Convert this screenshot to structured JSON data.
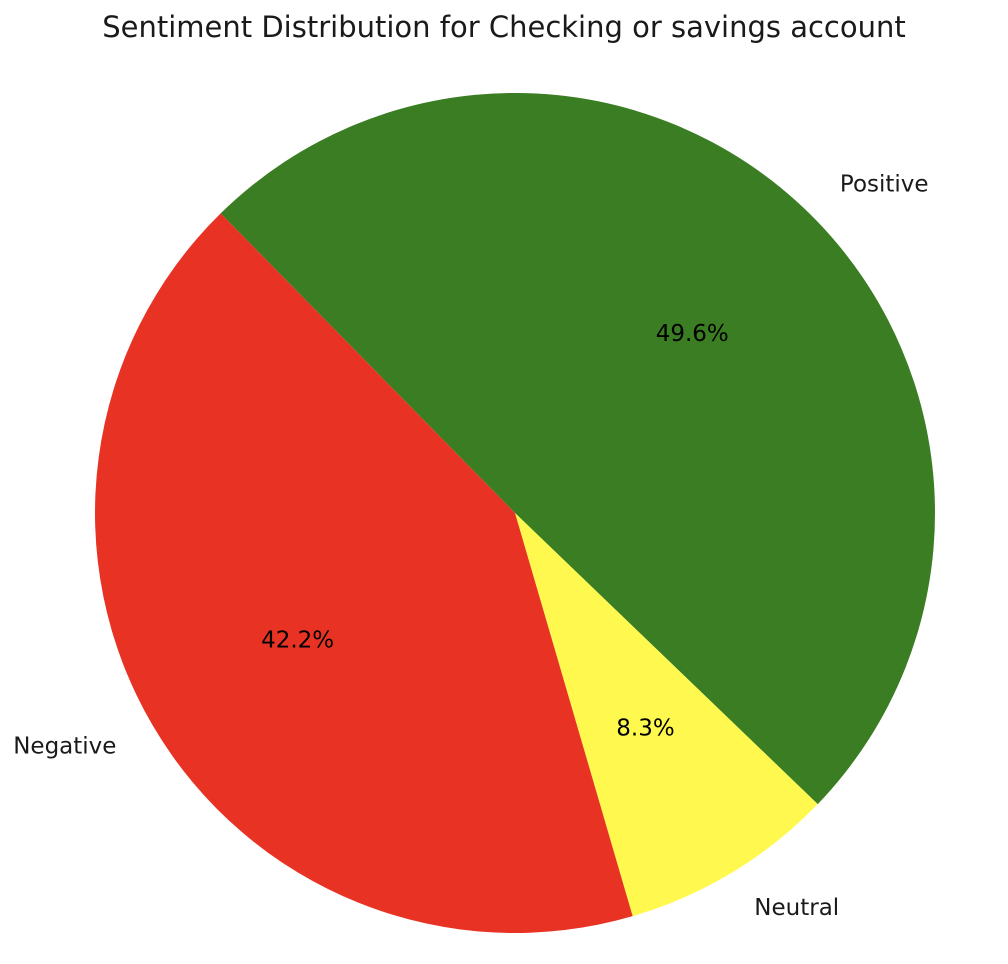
{
  "chart_data": {
    "type": "pie",
    "title": "Sentiment Distribution for Checking or savings account",
    "slices": [
      {
        "label": "Positive",
        "value": 49.6,
        "pct_label": "49.6%",
        "color": "#3a7d22"
      },
      {
        "label": "Neutral",
        "value": 8.3,
        "pct_label": "8.3%",
        "color": "#fff94f"
      },
      {
        "label": "Negative",
        "value": 42.2,
        "pct_label": "42.2%",
        "color": "#e83324"
      }
    ]
  }
}
